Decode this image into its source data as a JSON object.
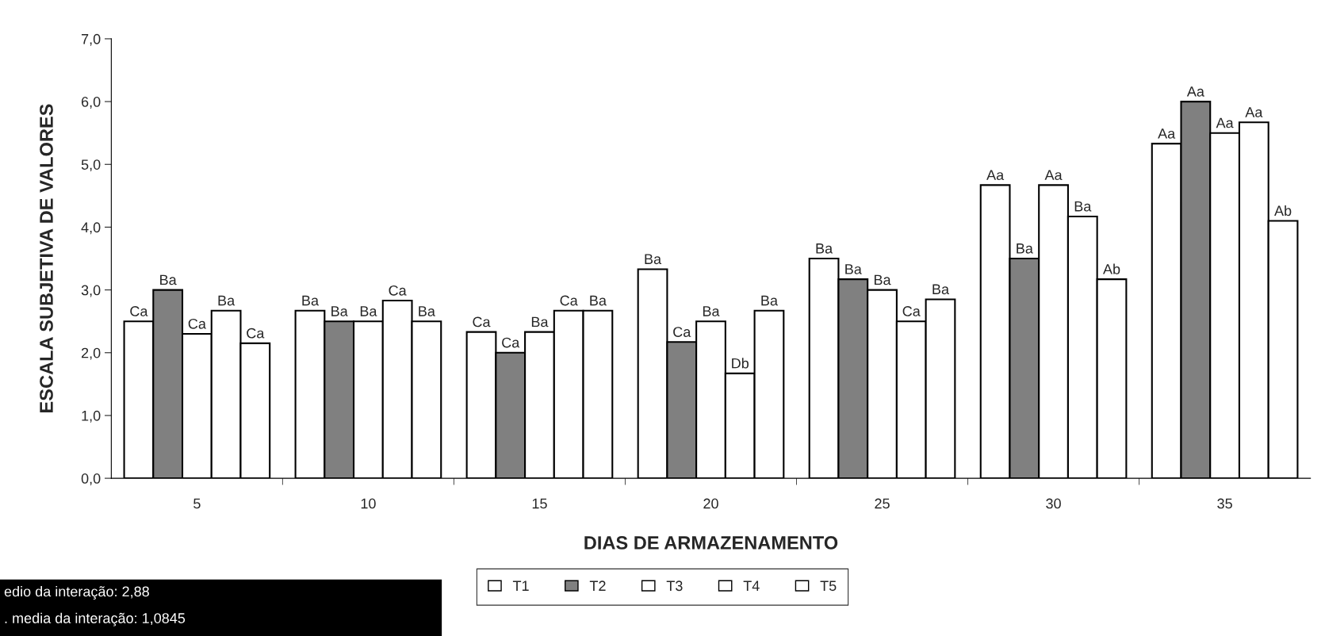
{
  "chart_data": {
    "type": "bar",
    "xlabel": "DIAS DE ARMAZENAMENTO",
    "ylabel": "ESCALA SUBJETIVA DE VALORES",
    "categories": [
      "5",
      "10",
      "15",
      "20",
      "25",
      "30",
      "35"
    ],
    "series": [
      {
        "name": "T1",
        "color": "#ffffff",
        "values": [
          2.5,
          2.67,
          2.33,
          3.33,
          3.5,
          4.67,
          5.33
        ],
        "value_labels": [
          "Ca",
          "Ba",
          "Ca",
          "Ba",
          "Ba",
          "Aa",
          "Aa"
        ]
      },
      {
        "name": "T2",
        "color": "#808080",
        "values": [
          3.0,
          2.5,
          2.0,
          2.17,
          3.17,
          3.5,
          6.0
        ],
        "value_labels": [
          "Ba",
          "Ba",
          "Ca",
          "Ca",
          "Ba",
          "Ba",
          "Aa"
        ]
      },
      {
        "name": "T3",
        "color": "#ffffff",
        "values": [
          2.3,
          2.5,
          2.33,
          2.5,
          3.0,
          4.67,
          5.5
        ],
        "value_labels": [
          "Ca",
          "Ba",
          "Ba",
          "Ba",
          "Ba",
          "Aa",
          "Aa"
        ]
      },
      {
        "name": "T4",
        "color": "#ffffff",
        "values": [
          2.67,
          2.83,
          2.67,
          1.67,
          2.5,
          4.17,
          5.67
        ],
        "value_labels": [
          "Ba",
          "Ca",
          "Ca",
          "Db",
          "Ca",
          "Ba",
          "Aa"
        ]
      },
      {
        "name": "T5",
        "color": "#ffffff",
        "values": [
          2.15,
          2.5,
          2.67,
          2.67,
          2.85,
          3.17,
          4.1
        ],
        "value_labels": [
          "Ca",
          "Ba",
          "Ba",
          "Ba",
          "Ba",
          "Ab",
          "Ab"
        ]
      }
    ],
    "ylim": [
      0,
      7
    ],
    "yticks": [
      {
        "value": 0,
        "label": "0,0"
      },
      {
        "value": 1,
        "label": "1,0"
      },
      {
        "value": 2,
        "label": "2,0"
      },
      {
        "value": 3,
        "label": "3,0"
      },
      {
        "value": 4,
        "label": "4,0"
      },
      {
        "value": 5,
        "label": "5,0"
      },
      {
        "value": 6,
        "label": "6,0"
      },
      {
        "value": 7,
        "label": "7,0"
      }
    ],
    "grid": false,
    "legend": "bottom",
    "annotations": [
      "edio da interação: 2,88",
      ". media da interação: 1,0845"
    ]
  }
}
